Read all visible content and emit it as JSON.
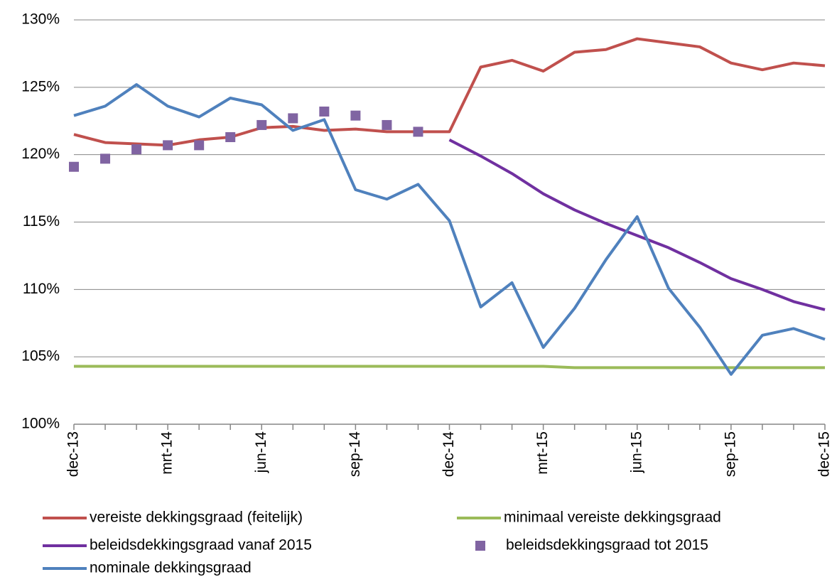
{
  "chart_data": {
    "type": "line",
    "categories": [
      "dec-13",
      null,
      null,
      "mrt-14",
      null,
      null,
      "jun-14",
      null,
      null,
      "sep-14",
      null,
      null,
      "dec-14",
      null,
      null,
      "mrt-15",
      null,
      null,
      "jun-15",
      null,
      null,
      "sep-15",
      null,
      null,
      "dec-15"
    ],
    "series": [
      {
        "name": "vereiste dekkingsgraad (feitelijk)",
        "color": "#c0504d",
        "values": [
          121.5,
          120.9,
          120.8,
          120.7,
          121.1,
          121.3,
          122.0,
          122.1,
          121.8,
          121.9,
          121.7,
          121.7,
          121.7,
          126.5,
          127.0,
          126.2,
          127.6,
          127.8,
          128.6,
          128.3,
          128.0,
          126.8,
          126.3,
          126.8,
          126.6
        ]
      },
      {
        "name": "minimaal vereiste dekkingsgraad",
        "color": "#9bbb59",
        "values": [
          104.3,
          104.3,
          104.3,
          104.3,
          104.3,
          104.3,
          104.3,
          104.3,
          104.3,
          104.3,
          104.3,
          104.3,
          104.3,
          104.3,
          104.3,
          104.3,
          104.2,
          104.2,
          104.2,
          104.2,
          104.2,
          104.2,
          104.2,
          104.2,
          104.2
        ]
      },
      {
        "name": "beleidsdekkingsgraad vanaf 2015",
        "color": "#7030a0",
        "values": [
          null,
          null,
          null,
          null,
          null,
          null,
          null,
          null,
          null,
          null,
          null,
          null,
          121.1,
          119.9,
          118.6,
          117.1,
          115.9,
          114.9,
          114.0,
          113.1,
          112.0,
          110.8,
          110.0,
          109.1,
          108.5
        ]
      },
      {
        "name": "beleidsdekkingsgraad tot 2015",
        "color": "#8064a2",
        "marker": "square",
        "values": [
          119.1,
          119.7,
          120.4,
          120.7,
          120.7,
          121.3,
          122.2,
          122.7,
          123.2,
          122.9,
          122.2,
          121.7,
          null,
          null,
          null,
          null,
          null,
          null,
          null,
          null,
          null,
          null,
          null,
          null,
          null
        ]
      },
      {
        "name": "nominale dekkingsgraad",
        "color": "#4f81bd",
        "values": [
          122.9,
          123.6,
          125.2,
          123.6,
          122.8,
          124.2,
          123.7,
          121.8,
          122.6,
          117.4,
          116.7,
          117.8,
          115.1,
          108.7,
          110.5,
          105.7,
          108.6,
          112.2,
          115.4,
          110.1,
          107.2,
          103.7,
          106.6,
          107.1,
          106.3
        ]
      }
    ],
    "ylim": [
      100,
      130
    ],
    "yticks": [
      {
        "value": 100,
        "label": "100%"
      },
      {
        "value": 105,
        "label": "105%"
      },
      {
        "value": 110,
        "label": "110%"
      },
      {
        "value": 115,
        "label": "115%"
      },
      {
        "value": 120,
        "label": "120%"
      },
      {
        "value": 125,
        "label": "125%"
      },
      {
        "value": 130,
        "label": "130%"
      }
    ],
    "grid": true,
    "legend": "bottom"
  }
}
